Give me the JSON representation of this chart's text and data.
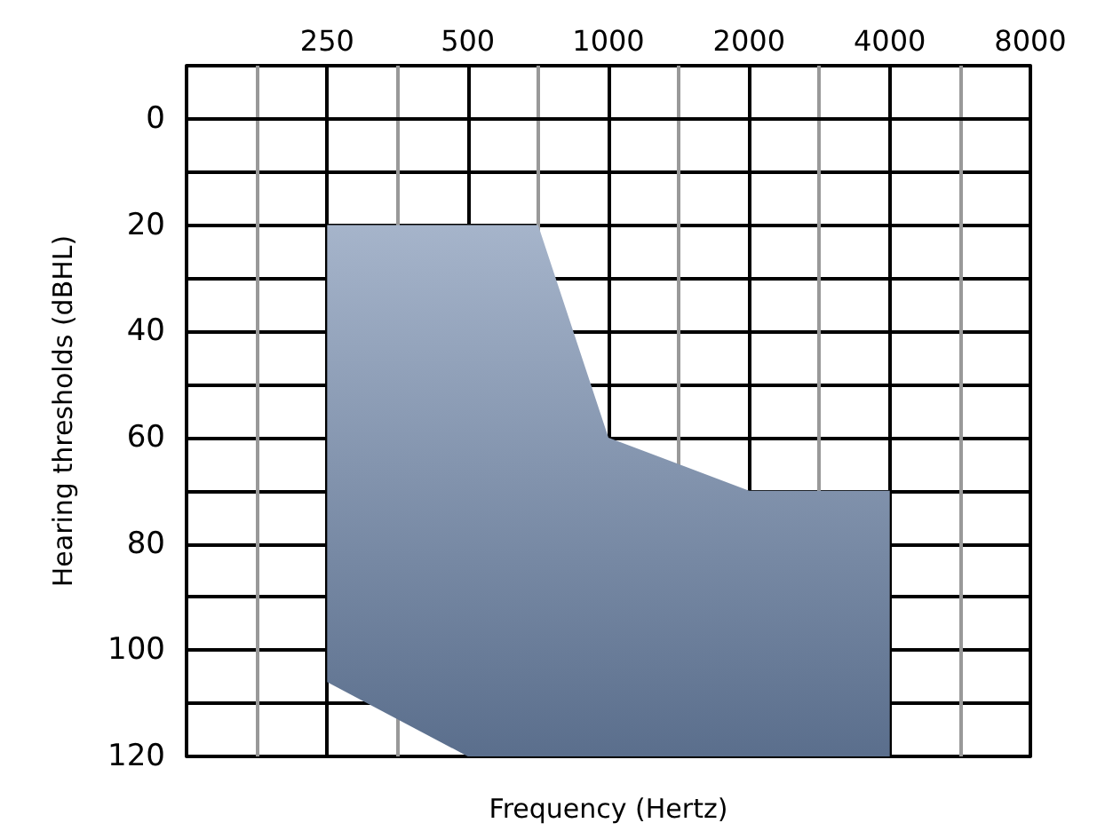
{
  "chart_data": {
    "type": "area",
    "xlabel": "Frequency (Hertz)",
    "ylabel": "Hearing thresholds (dBHL)",
    "log": "x",
    "xlim": [
      125,
      8000
    ],
    "xticks": [
      {
        "value": 125,
        "label": null
      },
      {
        "value": 177,
        "label": null
      },
      250,
      {
        "value": 354,
        "label": null
      },
      500,
      {
        "value": 707,
        "label": null
      },
      1000,
      {
        "value": 1414,
        "label": null
      },
      2000,
      {
        "value": 2828,
        "label": null
      },
      4000,
      {
        "value": 5657,
        "label": null
      },
      8000
    ],
    "ylim": [
      120,
      -10
    ],
    "yticks": [
      {
        "value": -10,
        "label": null
      },
      0,
      {
        "value": 10,
        "label": null
      },
      20,
      {
        "value": 30,
        "label": null
      },
      40,
      {
        "value": 50,
        "label": null
      },
      60,
      {
        "value": 70,
        "label": null
      },
      80,
      {
        "value": 90,
        "label": null
      },
      100,
      {
        "value": 110,
        "label": null
      },
      120
    ],
    "grid": true,
    "series": [
      {
        "color": "#7892bb",
        "x": [
          250,
          500,
          707,
          1000,
          2000,
          4000
        ],
        "values": [
          null,
          null,
          null,
          null,
          null,
          null
        ],
        "lower": [
          20,
          20,
          20,
          60,
          70,
          70
        ],
        "upper": [
          106,
          120,
          120,
          120,
          120,
          120
        ]
      }
    ]
  }
}
